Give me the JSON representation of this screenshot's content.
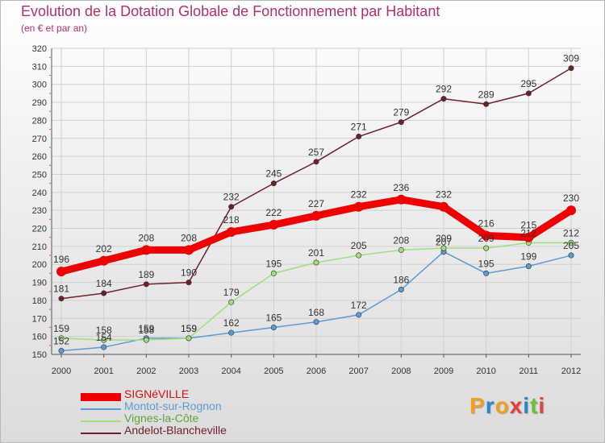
{
  "header": {
    "title": "Evolution de la Dotation Globale de Fonctionnement par Habitant",
    "subtitle": "(en € et par an)"
  },
  "logo": {
    "text": "Proxiti"
  },
  "colors": {
    "title": "#b0306b",
    "grid": "#d0d0d0",
    "axis": "#555555"
  },
  "chart_data": {
    "type": "line",
    "title": "Evolution de la Dotation Globale de Fonctionnement par Habitant",
    "subtitle": "(en € et par an)",
    "xlabel": "",
    "ylabel": "",
    "ylim": [
      150,
      320
    ],
    "ytick_step": 10,
    "grid": true,
    "legend_position": "bottom-left",
    "x": [
      "2000",
      "2001",
      "2002",
      "2003",
      "2004",
      "2005",
      "2006",
      "2007",
      "2008",
      "2009",
      "2010",
      "2011",
      "2012"
    ],
    "series": [
      {
        "name": "SIGNéVILLE",
        "color": "#ee0000",
        "bold": true,
        "values": [
          196,
          202,
          208,
          208,
          218,
          222,
          227,
          232,
          236,
          232,
          216,
          215,
          230
        ]
      },
      {
        "name": "Montot-sur-Rognon",
        "color": "#5b9bd5",
        "bold": false,
        "values": [
          152,
          154,
          159,
          159,
          162,
          165,
          168,
          172,
          186,
          207,
          195,
          199,
          205
        ]
      },
      {
        "name": "Vignes-la-Côte",
        "color": "#9ee07a",
        "bold": false,
        "values": [
          159,
          158,
          158,
          159,
          179,
          195,
          201,
          205,
          208,
          209,
          209,
          212,
          212
        ]
      },
      {
        "name": "Andelot-Blancheville",
        "color": "#6e1f2a",
        "bold": false,
        "values": [
          181,
          184,
          189,
          190,
          232,
          245,
          257,
          271,
          279,
          292,
          289,
          295,
          309
        ]
      }
    ]
  }
}
